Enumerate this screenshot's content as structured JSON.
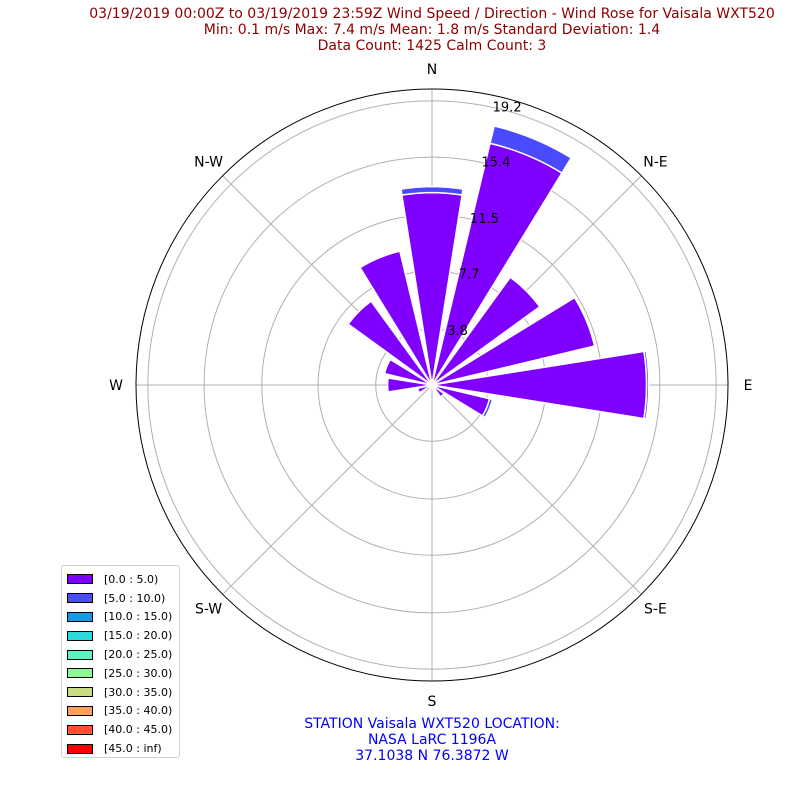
{
  "header": {
    "title_lines": [
      "03/19/2019 00:00Z to 03/19/2019 23:59Z Wind Speed / Direction - Wind Rose for Vaisala WXT520",
      "Min: 0.1 m/s   Max: 7.4 m/s   Mean: 1.8 m/s  Standard Deviation: 1.4",
      "Data Count: 1425  Calm Count:  3"
    ]
  },
  "footer": {
    "lines": [
      "STATION Vaisala WXT520 LOCATION:",
      "NASA LaRC 1196A",
      "37.1038 N 76.3872 W"
    ]
  },
  "chart_data": {
    "type": "wind-rose",
    "direction_labels": [
      "N",
      "N-E",
      "E",
      "S-E",
      "S",
      "S-W",
      "W",
      "N-W"
    ],
    "radial_ticks": [
      3.8,
      7.7,
      11.5,
      15.4,
      19.2
    ],
    "r_max": 20,
    "grid": true,
    "legend_placement": "lower-left",
    "sector_width_deg": 18,
    "sectors": [
      {
        "direction_deg": 0,
        "bins": [
          13.0,
          0.4
        ]
      },
      {
        "direction_deg": 22.5,
        "bins": [
          16.8,
          1.2
        ]
      },
      {
        "direction_deg": 45,
        "bins": [
          9.0,
          0.0
        ]
      },
      {
        "direction_deg": 67.5,
        "bins": [
          11.3,
          0.0
        ]
      },
      {
        "direction_deg": 90,
        "bins": [
          14.5,
          0.15
        ]
      },
      {
        "direction_deg": 112.5,
        "bins": [
          4.0,
          0.2
        ]
      },
      {
        "direction_deg": 135,
        "bins": [
          1.0,
          0.0
        ]
      },
      {
        "direction_deg": 157.5,
        "bins": [
          0.4,
          0.0
        ]
      },
      {
        "direction_deg": 180,
        "bins": [
          0.2,
          0.0
        ]
      },
      {
        "direction_deg": 202.5,
        "bins": [
          0.2,
          0.0
        ]
      },
      {
        "direction_deg": 225,
        "bins": [
          0.2,
          0.0
        ]
      },
      {
        "direction_deg": 247.5,
        "bins": [
          1.0,
          0.0
        ]
      },
      {
        "direction_deg": 270,
        "bins": [
          3.0,
          0.0
        ]
      },
      {
        "direction_deg": 292.5,
        "bins": [
          3.3,
          0.0
        ]
      },
      {
        "direction_deg": 315,
        "bins": [
          7.0,
          0.0
        ]
      },
      {
        "direction_deg": 337.5,
        "bins": [
          9.3,
          0.0
        ]
      }
    ],
    "legend": [
      {
        "label": "[0.0 : 5.0)",
        "color": "#7f00ff"
      },
      {
        "label": "[5.0 : 10.0)",
        "color": "#4a4aff"
      },
      {
        "label": "[10.0 : 15.0)",
        "color": "#1997e6"
      },
      {
        "label": "[15.0 : 20.0)",
        "color": "#2bd9dc"
      },
      {
        "label": "[20.0 : 25.0)",
        "color": "#59f6c0"
      },
      {
        "label": "[25.0 : 30.0)",
        "color": "#8cfa94"
      },
      {
        "label": "[30.0 : 35.0)",
        "color": "#c9dd80"
      },
      {
        "label": "[35.0 : 40.0)",
        "color": "#ffa05a"
      },
      {
        "label": "[40.0 : 45.0)",
        "color": "#ff5233"
      },
      {
        "label": "[45.0 : inf)",
        "color": "#ff0000"
      }
    ]
  }
}
